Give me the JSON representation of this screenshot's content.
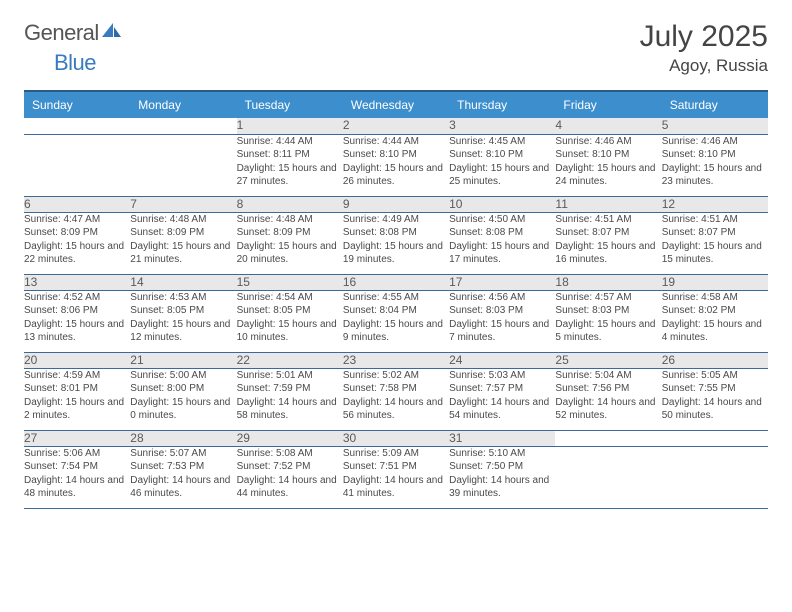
{
  "brand": {
    "part1": "General",
    "part2": "Blue"
  },
  "title": "July 2025",
  "location": "Agoy, Russia",
  "colors": {
    "header_bg": "#3d8ecd",
    "header_text": "#ffffff",
    "daynum_bg": "#e8e8e8",
    "border": "#3a6a9a",
    "text": "#4a4a4a"
  },
  "daysOfWeek": [
    "Sunday",
    "Monday",
    "Tuesday",
    "Wednesday",
    "Thursday",
    "Friday",
    "Saturday"
  ],
  "weeks": [
    {
      "nums": [
        "",
        "",
        "1",
        "2",
        "3",
        "4",
        "5"
      ],
      "cells": [
        null,
        null,
        {
          "sunrise": "Sunrise: 4:44 AM",
          "sunset": "Sunset: 8:11 PM",
          "daylight": "Daylight: 15 hours and 27 minutes."
        },
        {
          "sunrise": "Sunrise: 4:44 AM",
          "sunset": "Sunset: 8:10 PM",
          "daylight": "Daylight: 15 hours and 26 minutes."
        },
        {
          "sunrise": "Sunrise: 4:45 AM",
          "sunset": "Sunset: 8:10 PM",
          "daylight": "Daylight: 15 hours and 25 minutes."
        },
        {
          "sunrise": "Sunrise: 4:46 AM",
          "sunset": "Sunset: 8:10 PM",
          "daylight": "Daylight: 15 hours and 24 minutes."
        },
        {
          "sunrise": "Sunrise: 4:46 AM",
          "sunset": "Sunset: 8:10 PM",
          "daylight": "Daylight: 15 hours and 23 minutes."
        }
      ]
    },
    {
      "nums": [
        "6",
        "7",
        "8",
        "9",
        "10",
        "11",
        "12"
      ],
      "cells": [
        {
          "sunrise": "Sunrise: 4:47 AM",
          "sunset": "Sunset: 8:09 PM",
          "daylight": "Daylight: 15 hours and 22 minutes."
        },
        {
          "sunrise": "Sunrise: 4:48 AM",
          "sunset": "Sunset: 8:09 PM",
          "daylight": "Daylight: 15 hours and 21 minutes."
        },
        {
          "sunrise": "Sunrise: 4:48 AM",
          "sunset": "Sunset: 8:09 PM",
          "daylight": "Daylight: 15 hours and 20 minutes."
        },
        {
          "sunrise": "Sunrise: 4:49 AM",
          "sunset": "Sunset: 8:08 PM",
          "daylight": "Daylight: 15 hours and 19 minutes."
        },
        {
          "sunrise": "Sunrise: 4:50 AM",
          "sunset": "Sunset: 8:08 PM",
          "daylight": "Daylight: 15 hours and 17 minutes."
        },
        {
          "sunrise": "Sunrise: 4:51 AM",
          "sunset": "Sunset: 8:07 PM",
          "daylight": "Daylight: 15 hours and 16 minutes."
        },
        {
          "sunrise": "Sunrise: 4:51 AM",
          "sunset": "Sunset: 8:07 PM",
          "daylight": "Daylight: 15 hours and 15 minutes."
        }
      ]
    },
    {
      "nums": [
        "13",
        "14",
        "15",
        "16",
        "17",
        "18",
        "19"
      ],
      "cells": [
        {
          "sunrise": "Sunrise: 4:52 AM",
          "sunset": "Sunset: 8:06 PM",
          "daylight": "Daylight: 15 hours and 13 minutes."
        },
        {
          "sunrise": "Sunrise: 4:53 AM",
          "sunset": "Sunset: 8:05 PM",
          "daylight": "Daylight: 15 hours and 12 minutes."
        },
        {
          "sunrise": "Sunrise: 4:54 AM",
          "sunset": "Sunset: 8:05 PM",
          "daylight": "Daylight: 15 hours and 10 minutes."
        },
        {
          "sunrise": "Sunrise: 4:55 AM",
          "sunset": "Sunset: 8:04 PM",
          "daylight": "Daylight: 15 hours and 9 minutes."
        },
        {
          "sunrise": "Sunrise: 4:56 AM",
          "sunset": "Sunset: 8:03 PM",
          "daylight": "Daylight: 15 hours and 7 minutes."
        },
        {
          "sunrise": "Sunrise: 4:57 AM",
          "sunset": "Sunset: 8:03 PM",
          "daylight": "Daylight: 15 hours and 5 minutes."
        },
        {
          "sunrise": "Sunrise: 4:58 AM",
          "sunset": "Sunset: 8:02 PM",
          "daylight": "Daylight: 15 hours and 4 minutes."
        }
      ]
    },
    {
      "nums": [
        "20",
        "21",
        "22",
        "23",
        "24",
        "25",
        "26"
      ],
      "cells": [
        {
          "sunrise": "Sunrise: 4:59 AM",
          "sunset": "Sunset: 8:01 PM",
          "daylight": "Daylight: 15 hours and 2 minutes."
        },
        {
          "sunrise": "Sunrise: 5:00 AM",
          "sunset": "Sunset: 8:00 PM",
          "daylight": "Daylight: 15 hours and 0 minutes."
        },
        {
          "sunrise": "Sunrise: 5:01 AM",
          "sunset": "Sunset: 7:59 PM",
          "daylight": "Daylight: 14 hours and 58 minutes."
        },
        {
          "sunrise": "Sunrise: 5:02 AM",
          "sunset": "Sunset: 7:58 PM",
          "daylight": "Daylight: 14 hours and 56 minutes."
        },
        {
          "sunrise": "Sunrise: 5:03 AM",
          "sunset": "Sunset: 7:57 PM",
          "daylight": "Daylight: 14 hours and 54 minutes."
        },
        {
          "sunrise": "Sunrise: 5:04 AM",
          "sunset": "Sunset: 7:56 PM",
          "daylight": "Daylight: 14 hours and 52 minutes."
        },
        {
          "sunrise": "Sunrise: 5:05 AM",
          "sunset": "Sunset: 7:55 PM",
          "daylight": "Daylight: 14 hours and 50 minutes."
        }
      ]
    },
    {
      "nums": [
        "27",
        "28",
        "29",
        "30",
        "31",
        "",
        ""
      ],
      "cells": [
        {
          "sunrise": "Sunrise: 5:06 AM",
          "sunset": "Sunset: 7:54 PM",
          "daylight": "Daylight: 14 hours and 48 minutes."
        },
        {
          "sunrise": "Sunrise: 5:07 AM",
          "sunset": "Sunset: 7:53 PM",
          "daylight": "Daylight: 14 hours and 46 minutes."
        },
        {
          "sunrise": "Sunrise: 5:08 AM",
          "sunset": "Sunset: 7:52 PM",
          "daylight": "Daylight: 14 hours and 44 minutes."
        },
        {
          "sunrise": "Sunrise: 5:09 AM",
          "sunset": "Sunset: 7:51 PM",
          "daylight": "Daylight: 14 hours and 41 minutes."
        },
        {
          "sunrise": "Sunrise: 5:10 AM",
          "sunset": "Sunset: 7:50 PM",
          "daylight": "Daylight: 14 hours and 39 minutes."
        },
        null,
        null
      ]
    }
  ]
}
